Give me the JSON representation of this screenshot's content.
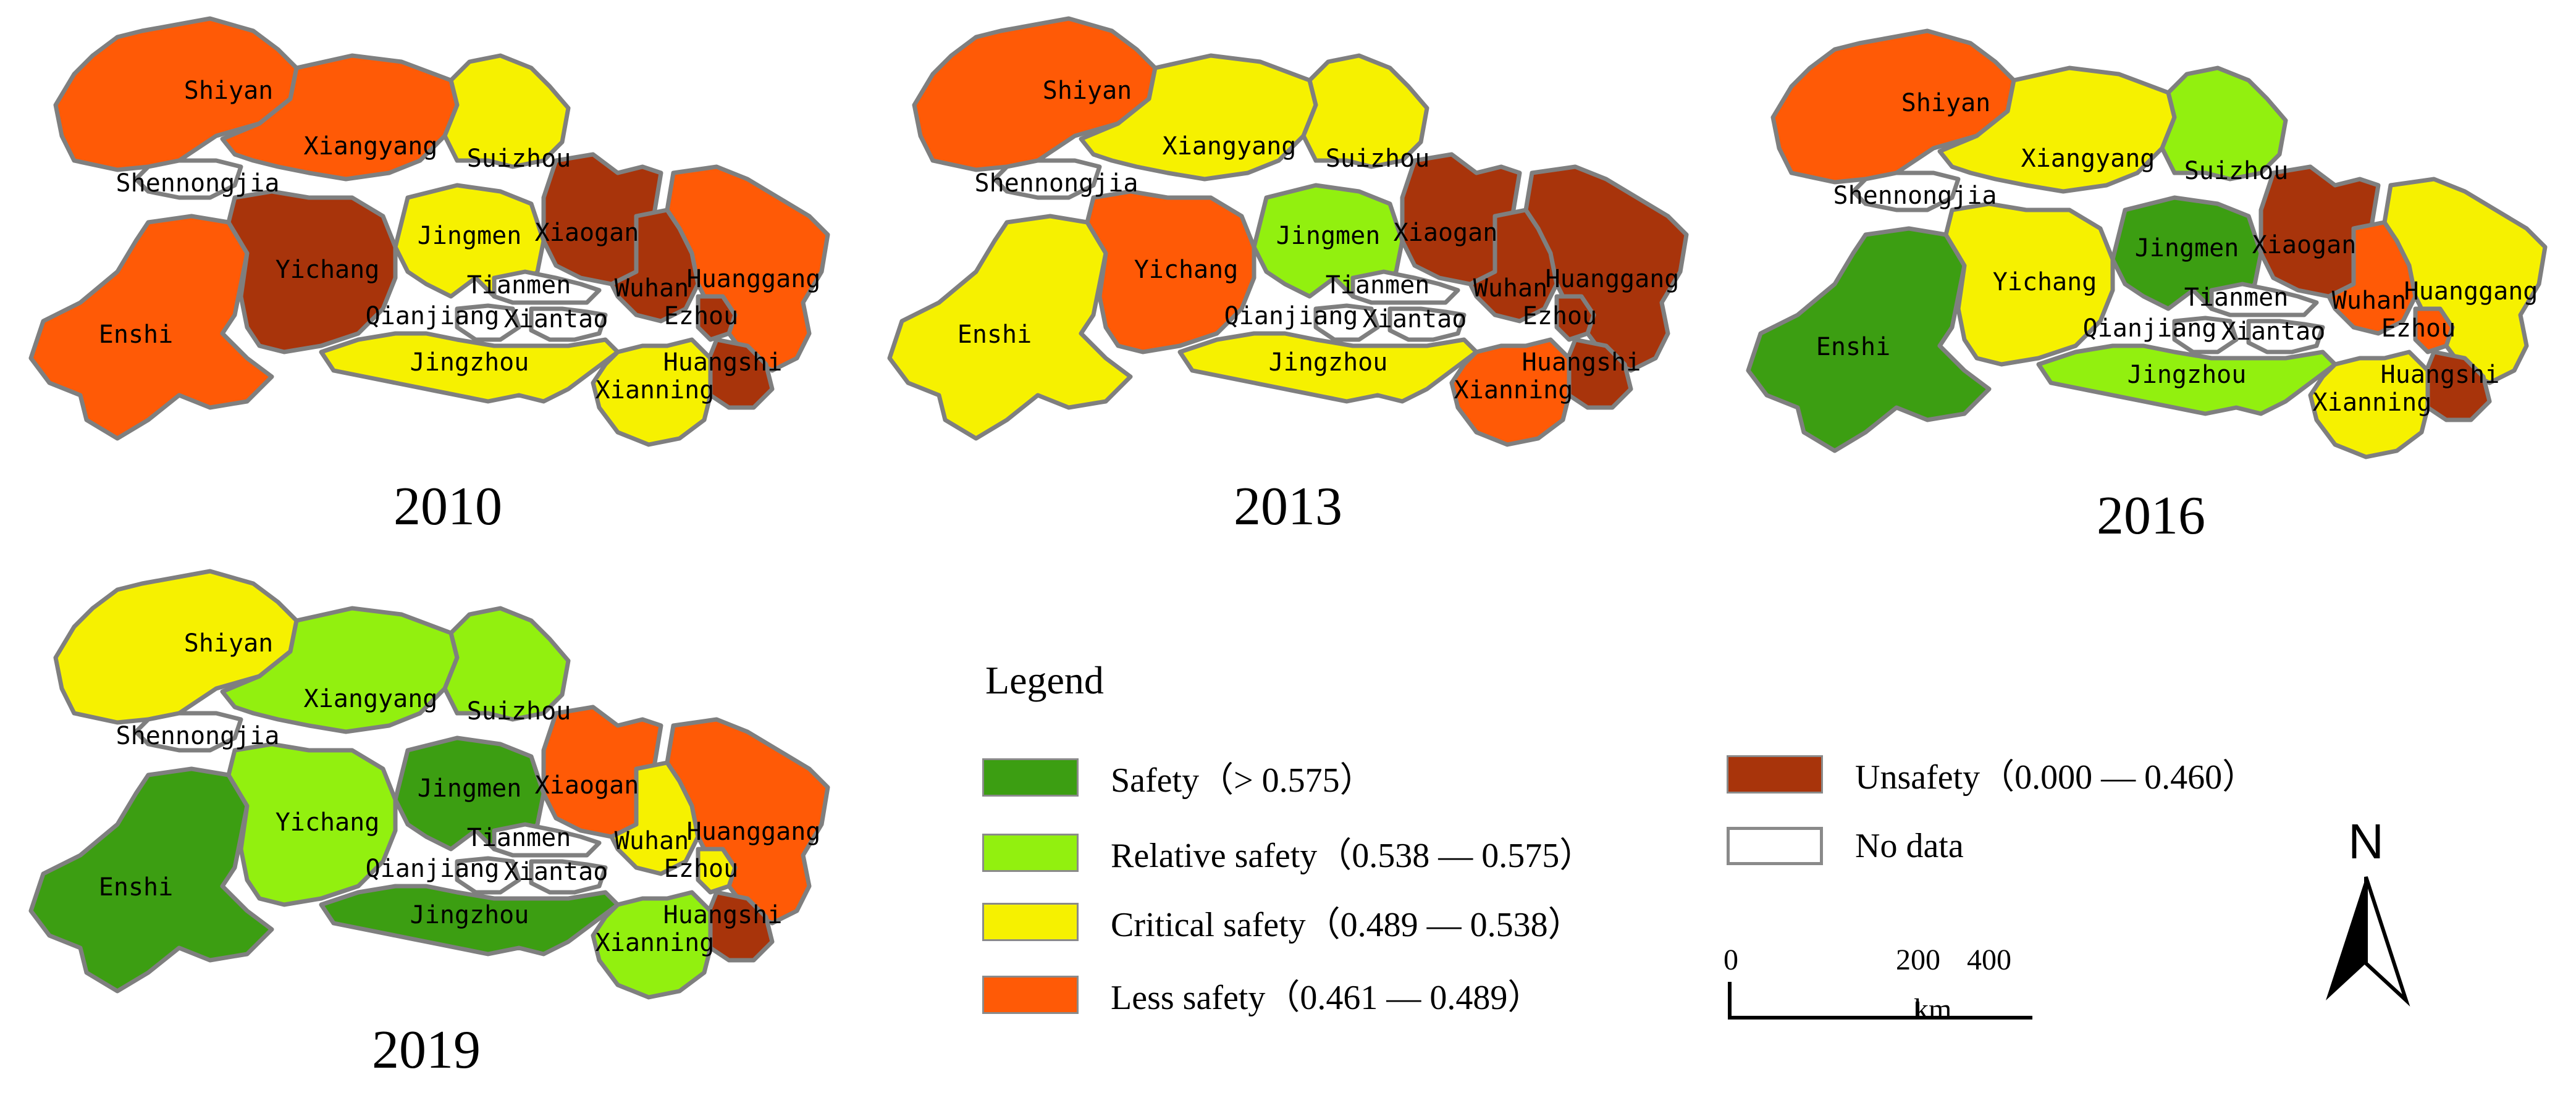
{
  "colors": {
    "safety": "#3c9e12",
    "relative_safety": "#92f00f",
    "critical_safety": "#f6f100",
    "less_safety": "#ff5a06",
    "unsafety": "#a8340b",
    "no_data": "#ffffff",
    "border": "#7f7f7f"
  },
  "maps": [
    {
      "year": "2010",
      "regions": {
        "Shiyan": "less_safety",
        "Xiangyang": "less_safety",
        "Suizhou": "critical_safety",
        "Shennongjia": "no_data",
        "Enshi": "less_safety",
        "Yichang": "unsafety",
        "Jingmen": "critical_safety",
        "Xiaogan": "unsafety",
        "Wuhan": "unsafety",
        "Huanggang": "less_safety",
        "Tianmen": "no_data",
        "Qianjiang": "no_data",
        "Xiantao": "no_data",
        "Ezhou": "unsafety",
        "Jingzhou": "critical_safety",
        "Huangshi": "unsafety",
        "Xianning": "critical_safety"
      }
    },
    {
      "year": "2013",
      "regions": {
        "Shiyan": "less_safety",
        "Xiangyang": "critical_safety",
        "Suizhou": "critical_safety",
        "Shennongjia": "no_data",
        "Enshi": "critical_safety",
        "Yichang": "less_safety",
        "Jingmen": "relative_safety",
        "Xiaogan": "unsafety",
        "Wuhan": "unsafety",
        "Huanggang": "unsafety",
        "Tianmen": "no_data",
        "Qianjiang": "no_data",
        "Xiantao": "no_data",
        "Ezhou": "unsafety",
        "Jingzhou": "critical_safety",
        "Huangshi": "unsafety",
        "Xianning": "less_safety"
      }
    },
    {
      "year": "2016",
      "regions": {
        "Shiyan": "less_safety",
        "Xiangyang": "critical_safety",
        "Suizhou": "relative_safety",
        "Shennongjia": "no_data",
        "Enshi": "safety",
        "Yichang": "critical_safety",
        "Jingmen": "safety",
        "Xiaogan": "unsafety",
        "Wuhan": "less_safety",
        "Huanggang": "critical_safety",
        "Tianmen": "no_data",
        "Qianjiang": "no_data",
        "Xiantao": "no_data",
        "Ezhou": "less_safety",
        "Jingzhou": "relative_safety",
        "Huangshi": "unsafety",
        "Xianning": "critical_safety"
      }
    },
    {
      "year": "2019",
      "regions": {
        "Shiyan": "critical_safety",
        "Xiangyang": "relative_safety",
        "Suizhou": "relative_safety",
        "Shennongjia": "no_data",
        "Enshi": "safety",
        "Yichang": "relative_safety",
        "Jingmen": "safety",
        "Xiaogan": "less_safety",
        "Wuhan": "critical_safety",
        "Huanggang": "less_safety",
        "Tianmen": "no_data",
        "Qianjiang": "no_data",
        "Xiantao": "no_data",
        "Ezhou": "critical_safety",
        "Jingzhou": "safety",
        "Huangshi": "unsafety",
        "Xianning": "relative_safety"
      }
    }
  ],
  "legend": {
    "title": "Legend",
    "items": [
      {
        "key": "safety",
        "label": "Safety（> 0.575）"
      },
      {
        "key": "relative_safety",
        "label": "Relative safety（0.538 — 0.575）"
      },
      {
        "key": "critical_safety",
        "label": "Critical safety（0.489 — 0.538）"
      },
      {
        "key": "less_safety",
        "label": "Less safety（0.461 — 0.489）"
      },
      {
        "key": "unsafety",
        "label": "Unsafety（0.000 — 0.460）"
      },
      {
        "key": "no_data",
        "label": "No data"
      }
    ]
  },
  "scale": {
    "ticks": [
      "0",
      "200",
      "400"
    ],
    "unit": "km"
  },
  "north_label": "N"
}
